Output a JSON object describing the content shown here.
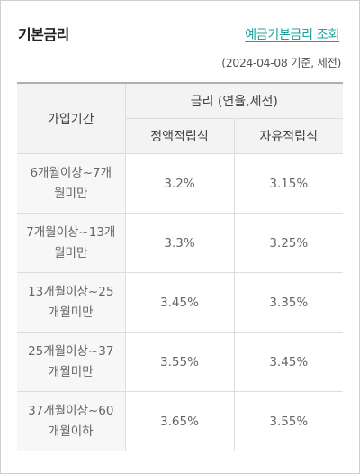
{
  "header": {
    "title": "기본금리",
    "lookup_link": "예금기본금리 조회",
    "basis_date": "(2024-04-08 기준, 세전)"
  },
  "table": {
    "column_period": "가입기간",
    "column_group": "금리 (연율,세전)",
    "column_fixed": "정액적립식",
    "column_free": "자유적립식",
    "rows": [
      {
        "period": "6개월이상~7개월미만",
        "fixed": "3.2%",
        "free": "3.15%"
      },
      {
        "period": "7개월이상~13개월미만",
        "fixed": "3.3%",
        "free": "3.25%"
      },
      {
        "period": "13개월이상~25개월미만",
        "fixed": "3.45%",
        "free": "3.35%"
      },
      {
        "period": "25개월이상~37개월미만",
        "fixed": "3.55%",
        "free": "3.45%"
      },
      {
        "period": "37개월이상~60개월이하",
        "fixed": "3.65%",
        "free": "3.55%"
      }
    ]
  },
  "colors": {
    "link": "#1aa39a",
    "header_bg": "#f3f3f3",
    "border": "#dddddd"
  }
}
